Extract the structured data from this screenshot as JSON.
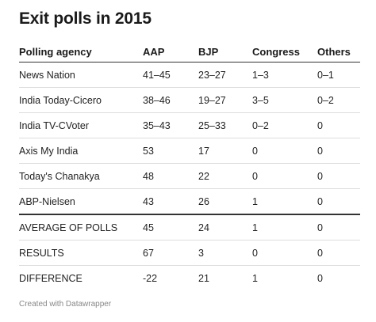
{
  "title": "Exit polls in 2015",
  "table": {
    "headers": [
      "Polling agency",
      "AAP",
      "BJP",
      "Congress",
      "Others"
    ],
    "rows": [
      [
        "News Nation",
        "41–45",
        "23–27",
        "1–3",
        "0–1"
      ],
      [
        "India Today-Cicero",
        "38–46",
        "19–27",
        "3–5",
        "0–2"
      ],
      [
        "India TV-CVoter",
        "35–43",
        "25–33",
        "0–2",
        "0"
      ],
      [
        "Axis My India",
        "53",
        "17",
        "0",
        "0"
      ],
      [
        "Today's Chanakya",
        "48",
        "22",
        "0",
        "0"
      ],
      [
        "ABP-Nielsen",
        "43",
        "26",
        "1",
        "0"
      ],
      [
        "AVERAGE OF POLLS",
        "45",
        "24",
        "1",
        "0"
      ],
      [
        "RESULTS",
        "67",
        "3",
        "0",
        "0"
      ],
      [
        "DIFFERENCE",
        "-22",
        "21",
        "1",
        "0"
      ]
    ]
  },
  "footer": "Created with Datawrapper"
}
